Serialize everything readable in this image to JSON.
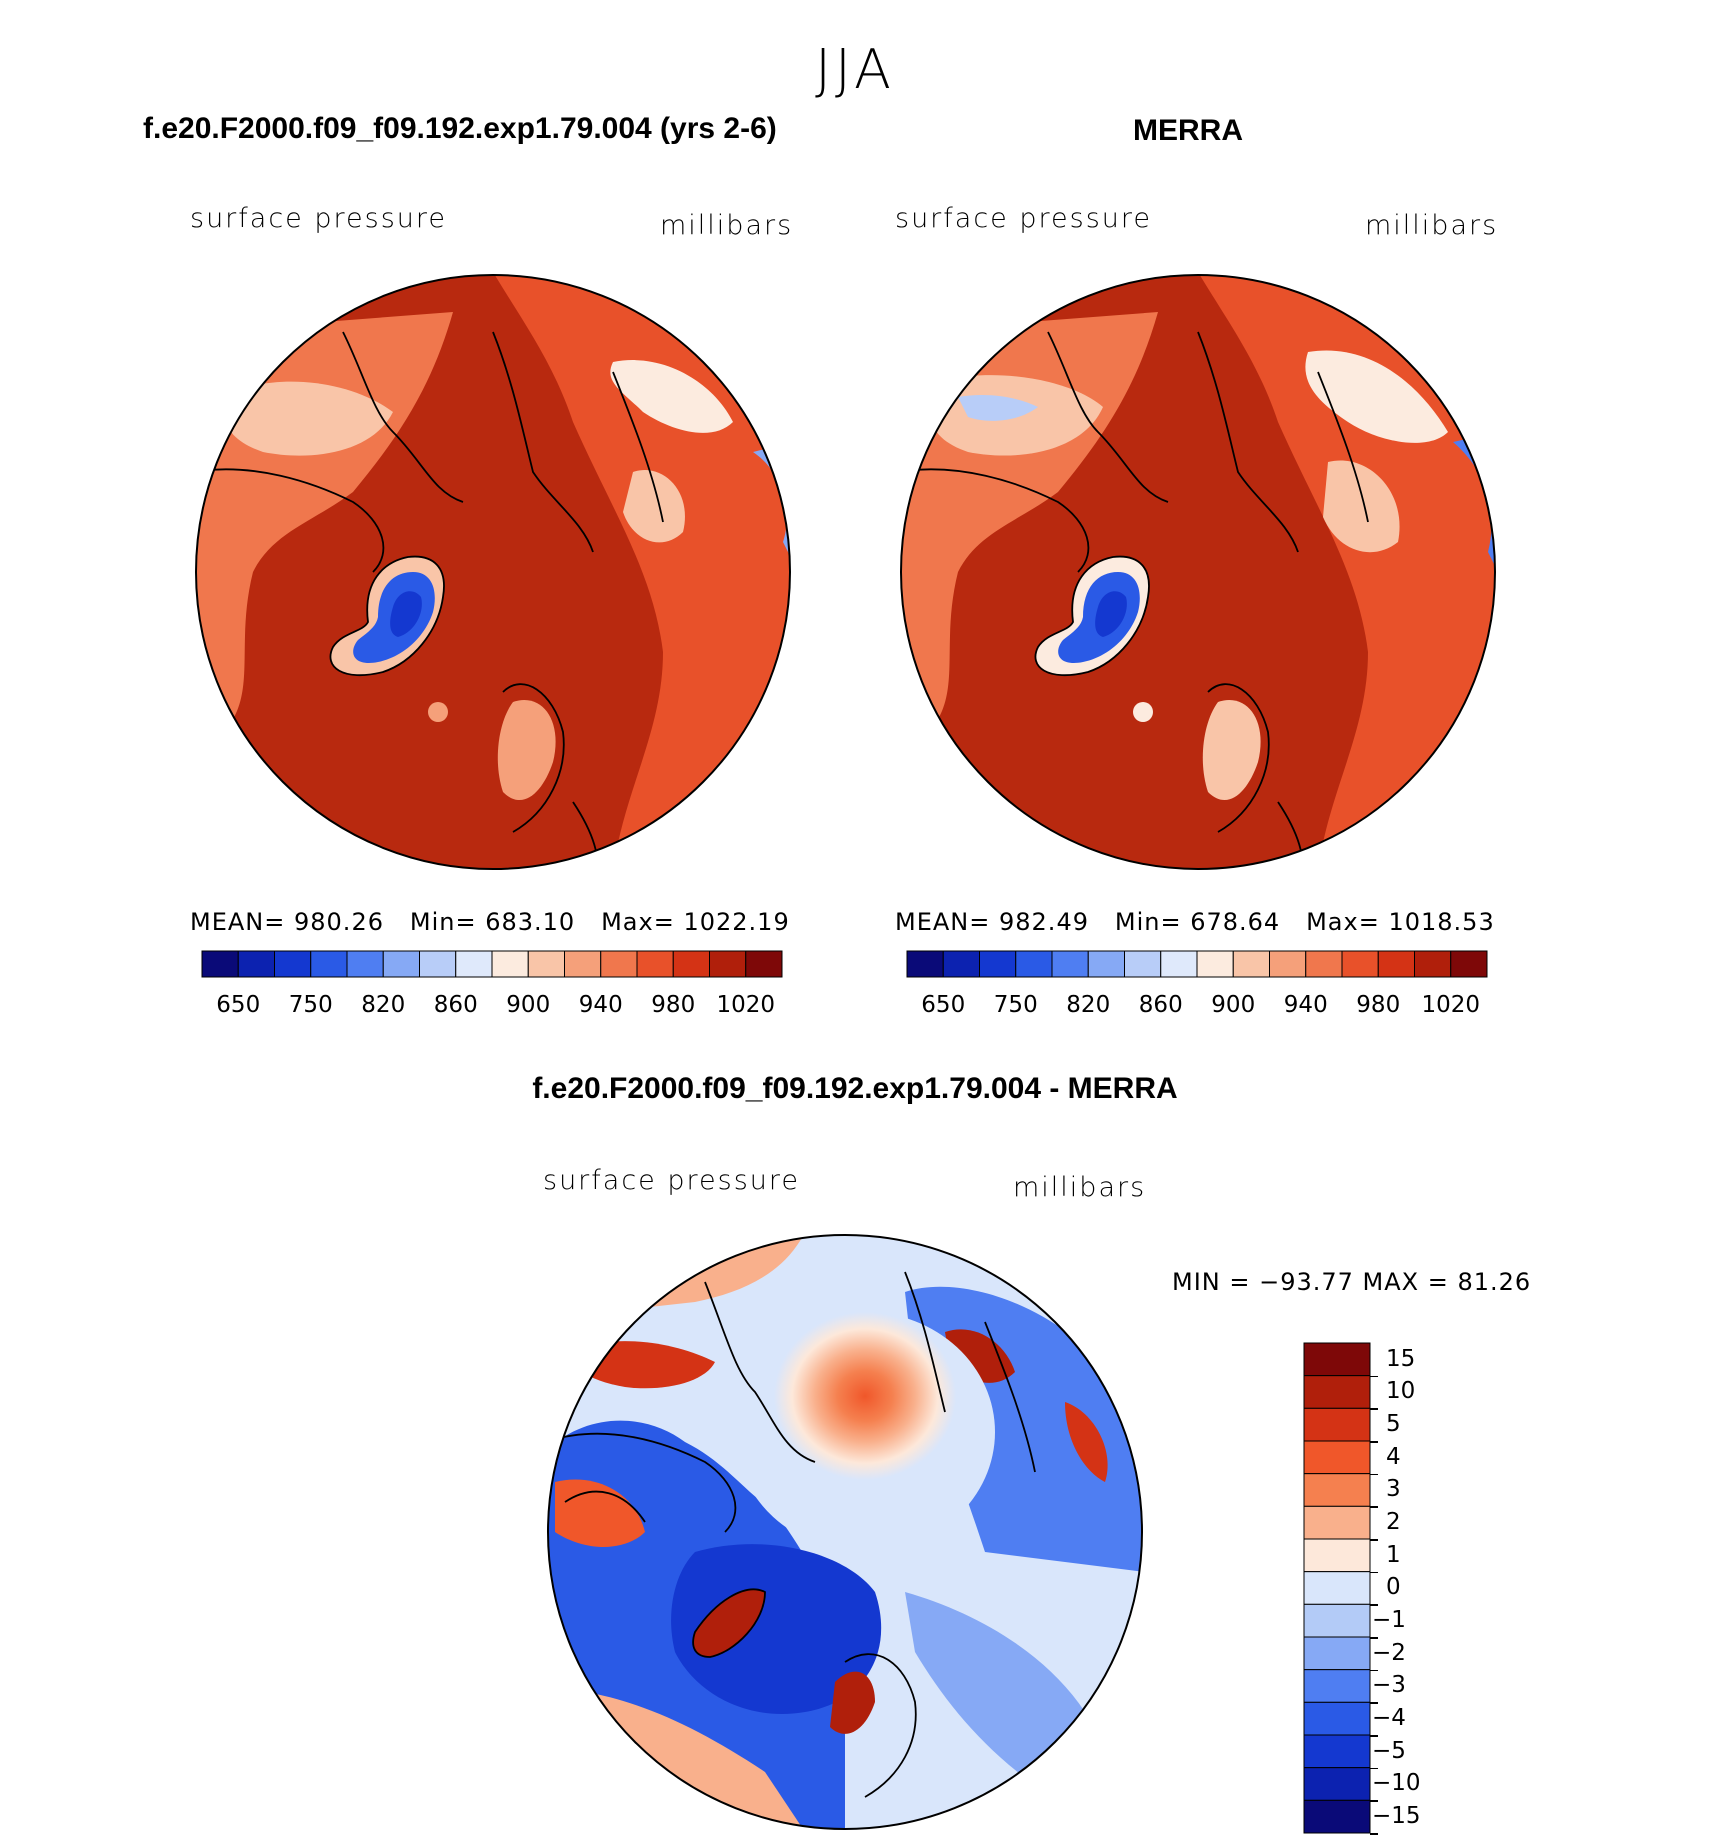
{
  "season": "JJA",
  "panels": [
    {
      "title": "f.e20.F2000.f09_f09.192.exp1.79.004 (yrs 2-6)",
      "variable": "surface pressure",
      "units": "millibars",
      "stats": {
        "mean": "MEAN=",
        "mean_val": "980.26",
        "min": "Min=",
        "min_val": "683.10",
        "max": "Max=",
        "max_val": "1022.19"
      }
    },
    {
      "title": "MERRA",
      "variable": "surface pressure",
      "units": "millibars",
      "stats": {
        "mean": "MEAN=",
        "mean_val": "982.49",
        "min": "Min=",
        "min_val": "678.64",
        "max": "Max=",
        "max_val": "1018.53"
      }
    },
    {
      "title": "f.e20.F2000.f09_f09.192.exp1.79.004 - MERRA",
      "variable": "surface pressure",
      "units": "millibars",
      "minmax": "MIN =  −93.77 MAX =   81.26"
    }
  ],
  "colors": {
    "abs_scale": [
      "#0a0a78",
      "#0c22b0",
      "#1438d0",
      "#2a5ae6",
      "#4f7ef2",
      "#86a9f5",
      "#b8cdf8",
      "#dfe9fb",
      "#fcebdf",
      "#f9c5a8",
      "#f5a07a",
      "#f0774d",
      "#e8512a",
      "#d43315",
      "#b01f0b",
      "#7e0808"
    ],
    "diff_scale": [
      "#7e0808",
      "#b01f0b",
      "#d43315",
      "#f0572a",
      "#f5804f",
      "#f9b08c",
      "#fde8da",
      "#d9e6fb",
      "#b3cbf7",
      "#86a9f5",
      "#4f7ef2",
      "#2a5ae6",
      "#1438d0",
      "#0c22b0",
      "#0a0a78"
    ],
    "ocean_abs": "#b8290f",
    "ocean_diff_center": "#f0572a"
  },
  "chart_data": [
    {
      "type": "heatmap",
      "title": "f.e20.F2000.f09_f09.192.exp1.79.004 (yrs 2-6)",
      "variable": "surface pressure",
      "units": "millibars",
      "mean": 980.26,
      "min": 683.1,
      "max": 1022.19,
      "colorbar_ticks": [
        "650",
        "750",
        "820",
        "860",
        "900",
        "940",
        "980",
        "1020"
      ]
    },
    {
      "type": "heatmap",
      "title": "MERRA",
      "variable": "surface pressure",
      "units": "millibars",
      "mean": 982.49,
      "min": 678.64,
      "max": 1018.53,
      "colorbar_ticks": [
        "650",
        "750",
        "820",
        "860",
        "900",
        "940",
        "980",
        "1020"
      ]
    },
    {
      "type": "heatmap",
      "title": "f.e20.F2000.f09_f09.192.exp1.79.004 - MERRA",
      "variable": "surface pressure",
      "units": "millibars",
      "min": -93.77,
      "max": 81.26,
      "colorbar_ticks": [
        "15",
        "10",
        "5",
        "4",
        "3",
        "2",
        "1",
        "0",
        "−1",
        "−2",
        "−3",
        "−4",
        "−5",
        "−10",
        "−15"
      ]
    }
  ]
}
